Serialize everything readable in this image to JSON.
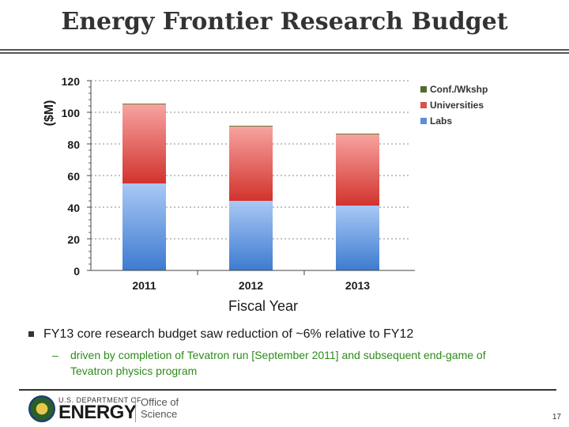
{
  "slide": {
    "title": "Energy Frontier Research Budget",
    "bullet_main": "FY13 core research budget saw reduction of ~6% relative to FY12",
    "bullet_sub_dash": "–",
    "bullet_sub": "driven by completion of Tevatron run [September 2011] and subsequent end-game of Tevatron physics program",
    "page_number": "17"
  },
  "logo": {
    "dept_small": "U.S. DEPARTMENT OF",
    "dept_big": "ENERGY",
    "office_line1": "Office of",
    "office_line2": "Science"
  },
  "chart_data": {
    "type": "bar",
    "stacked": true,
    "categories": [
      "2011",
      "2012",
      "2013"
    ],
    "series": [
      {
        "name": "Labs",
        "values": [
          55,
          44,
          41
        ],
        "color": "#5b8fd6"
      },
      {
        "name": "Universities",
        "values": [
          50,
          47,
          45
        ],
        "color": "#d9534f"
      },
      {
        "name": "Conf./Wkshp",
        "values": [
          0.5,
          0.5,
          0.5
        ],
        "color": "#4f6b2f"
      }
    ],
    "legend_order": [
      "Conf./Wkshp",
      "Universities",
      "Labs"
    ],
    "legend_position": "right",
    "xlabel": "Fiscal Year",
    "ylabel": "($M)",
    "ylim": [
      0,
      120
    ],
    "yticks": [
      0,
      20,
      40,
      60,
      80,
      100,
      120
    ],
    "grid": true
  }
}
